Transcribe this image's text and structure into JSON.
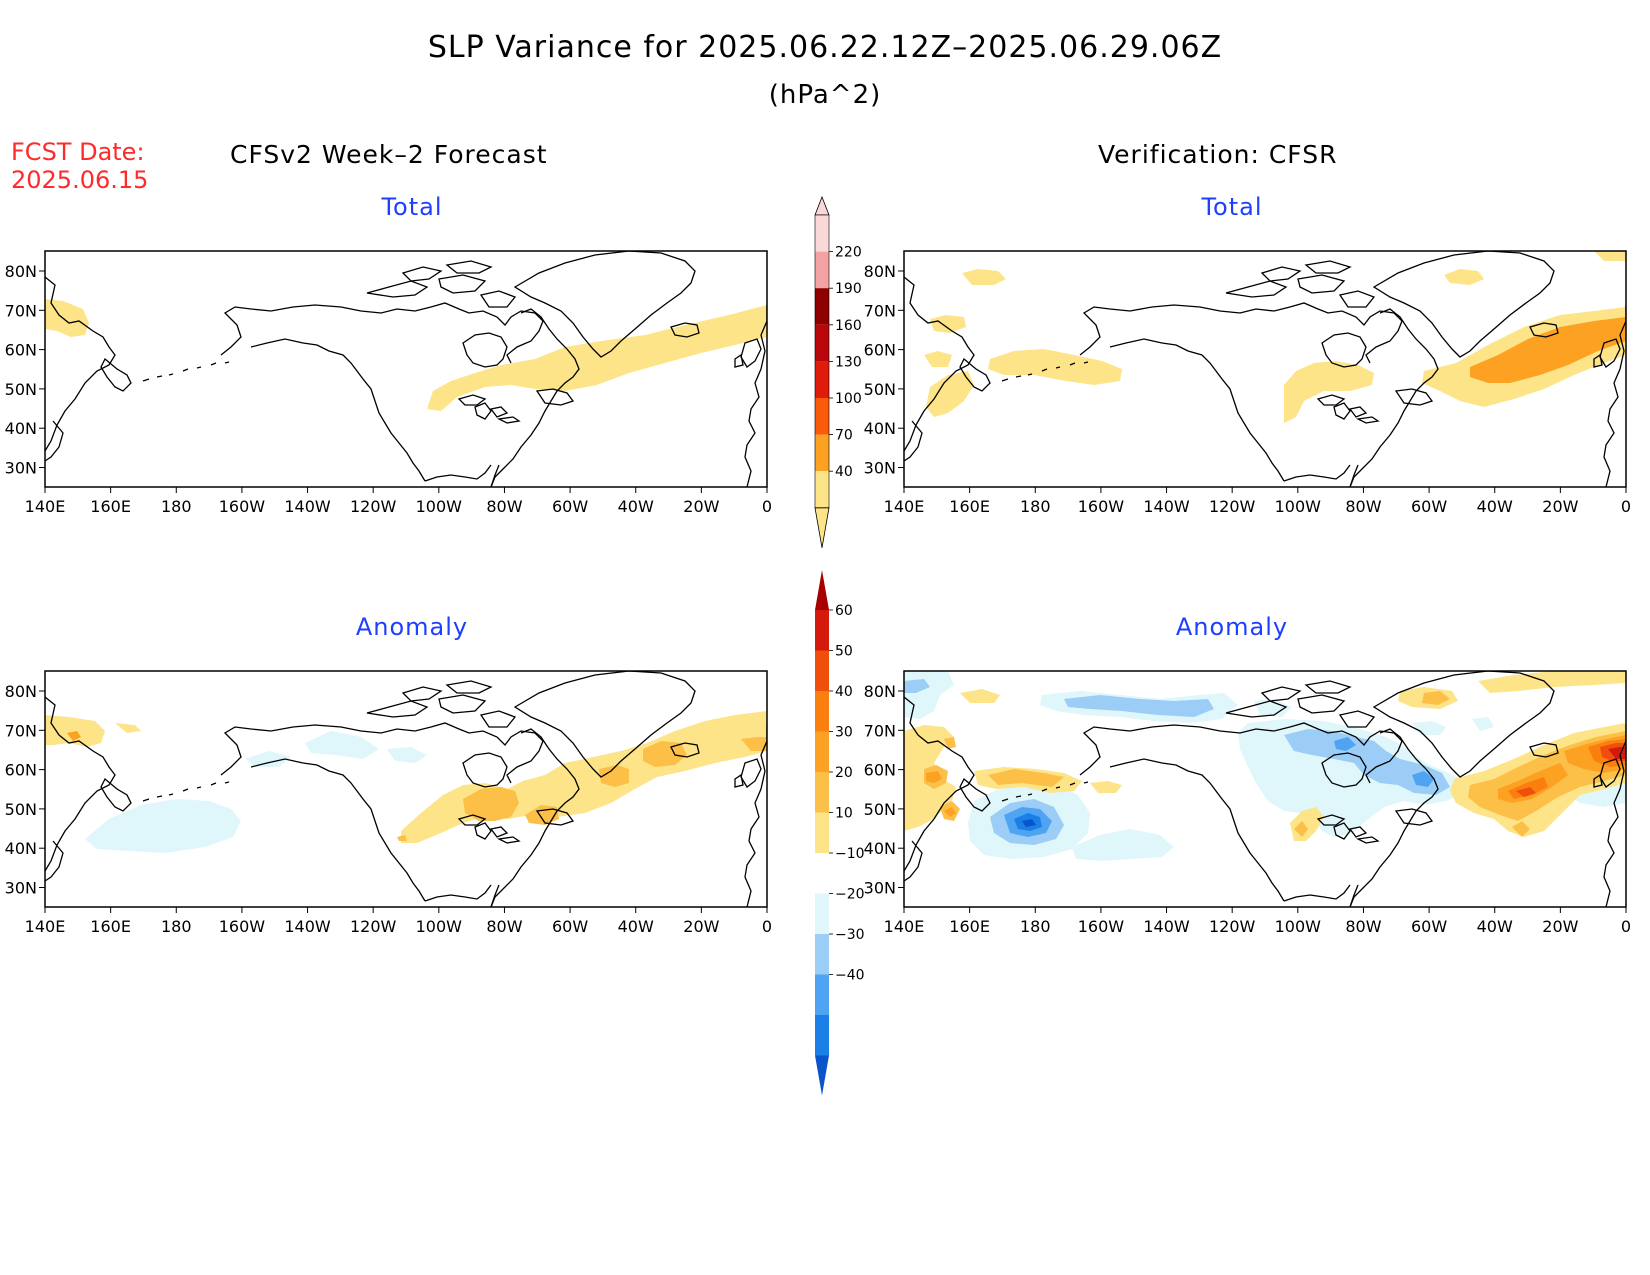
{
  "title": "SLP Variance for 2025.06.22.12Z–2025.06.29.06Z",
  "units": "(hPa^2)",
  "forecast_date": {
    "label": "FCST Date:",
    "value": "2025.06.15"
  },
  "column_headers": {
    "left": "CFSv2 Week–2 Forecast",
    "right": "Verification: CFSR"
  },
  "panels": [
    {
      "id": "fcst-total",
      "title": "Total"
    },
    {
      "id": "verif-total",
      "title": "Total"
    },
    {
      "id": "fcst-anom",
      "title": "Anomaly"
    },
    {
      "id": "verif-anom",
      "title": "Anomaly"
    }
  ],
  "lat_labels": [
    "80N",
    "70N",
    "60N",
    "50N",
    "40N",
    "30N"
  ],
  "lon_labels": [
    "140E",
    "160E",
    "180",
    "160W",
    "140W",
    "120W",
    "100W",
    "80W",
    "60W",
    "40W",
    "20W",
    "0"
  ],
  "colorbar_total": {
    "levels": [
      "40",
      "70",
      "100",
      "130",
      "160",
      "190",
      "220"
    ],
    "colors": [
      "#fde488",
      "#fca121",
      "#fb5a0a",
      "#e11b0b",
      "#b8060b",
      "#8e0000",
      "#f2a2a2",
      "#fbd8d8"
    ]
  },
  "colorbar_anomaly": {
    "levels": [
      "−40",
      "−30",
      "−20",
      "−10",
      "10",
      "20",
      "30",
      "40",
      "50",
      "60"
    ],
    "colors": [
      "#0a55cc",
      "#1a7fe6",
      "#4ea4f2",
      "#9bcdf6",
      "#dff6fb",
      "#ffffff",
      "#fde488",
      "#fcbf47",
      "#fca121",
      "#fb7f0f",
      "#f04e0b",
      "#d41a0b",
      "#a80000"
    ]
  }
}
